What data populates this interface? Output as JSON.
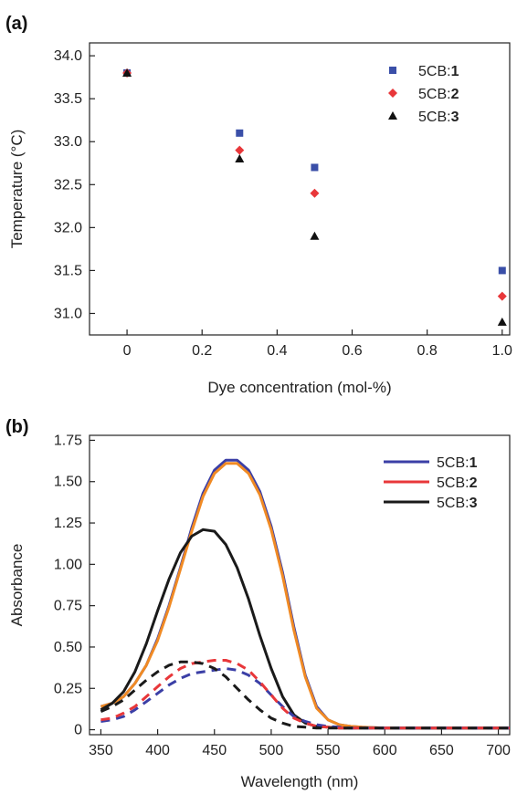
{
  "chart_data": [
    {
      "panel_label": "(a)",
      "type": "scatter",
      "xlabel": "Dye concentration (mol-%)",
      "ylabel": "Temperature (°C)",
      "xlim": [
        -0.1,
        1.02
      ],
      "ylim": [
        30.75,
        34.15
      ],
      "xticks": [
        "0",
        "0.2",
        "0.4",
        "0.6",
        "0.8",
        "1.0"
      ],
      "xtick_values": [
        0,
        0.2,
        0.4,
        0.6,
        0.8,
        1.0
      ],
      "yticks": [
        "31.0",
        "31.5",
        "32.0",
        "32.5",
        "33.0",
        "33.5",
        "34.0"
      ],
      "ytick_values": [
        31.0,
        31.5,
        32.0,
        32.5,
        33.0,
        33.5,
        34.0
      ],
      "grid": false,
      "legend_position": "top-right",
      "x": [
        0,
        0.3,
        0.5,
        1.0
      ],
      "series": [
        {
          "name_prefix": "5CB:",
          "name_bold": "1",
          "marker": "square",
          "color": "#3a4fa8",
          "values": [
            33.8,
            33.1,
            32.7,
            31.5
          ]
        },
        {
          "name_prefix": "5CB:",
          "name_bold": "2",
          "marker": "diamond",
          "color": "#e8373a",
          "values": [
            33.8,
            32.9,
            32.4,
            31.2
          ]
        },
        {
          "name_prefix": "5CB:",
          "name_bold": "3",
          "marker": "triangle",
          "color": "#111111",
          "values": [
            33.8,
            32.8,
            31.9,
            30.9
          ]
        }
      ]
    },
    {
      "panel_label": "(b)",
      "type": "line",
      "xlabel": "Wavelength (nm)",
      "ylabel": "Absorbance",
      "xlim": [
        340,
        710
      ],
      "ylim": [
        -0.03,
        1.78
      ],
      "xticks": [
        "350",
        "400",
        "450",
        "500",
        "550",
        "600",
        "650",
        "700"
      ],
      "xtick_values": [
        350,
        400,
        450,
        500,
        550,
        600,
        650,
        700
      ],
      "yticks": [
        "0",
        "0.25",
        "0.50",
        "0.75",
        "1.00",
        "1.25",
        "1.50",
        "1.75"
      ],
      "ytick_values": [
        0,
        0.25,
        0.5,
        0.75,
        1.0,
        1.25,
        1.5,
        1.75
      ],
      "grid": false,
      "legend_position": "top-right",
      "x": [
        350,
        360,
        370,
        380,
        390,
        400,
        410,
        420,
        430,
        440,
        450,
        460,
        470,
        480,
        490,
        500,
        510,
        520,
        530,
        540,
        550,
        560,
        570,
        580,
        600,
        650,
        700,
        710
      ],
      "series": [
        {
          "name_prefix": "5CB:",
          "name_bold": "1",
          "color": "#3b3fa6",
          "dash": "solid",
          "values": [
            0.14,
            0.16,
            0.2,
            0.28,
            0.39,
            0.55,
            0.75,
            0.98,
            1.22,
            1.43,
            1.57,
            1.63,
            1.63,
            1.57,
            1.44,
            1.23,
            0.95,
            0.62,
            0.33,
            0.14,
            0.06,
            0.03,
            0.02,
            0.015,
            0.01,
            0.01,
            0.01,
            0.01
          ]
        },
        {
          "name": "",
          "color": "#f08a24",
          "dash": "solid",
          "values": [
            0.14,
            0.16,
            0.2,
            0.28,
            0.39,
            0.54,
            0.74,
            0.97,
            1.2,
            1.41,
            1.55,
            1.61,
            1.61,
            1.55,
            1.42,
            1.21,
            0.93,
            0.6,
            0.32,
            0.13,
            0.06,
            0.03,
            0.02,
            0.015,
            0.01,
            0.01,
            0.01,
            0.01
          ]
        },
        {
          "name_prefix": "5CB:",
          "name_bold": "3",
          "color": "#1a1a1a",
          "dash": "solid",
          "values": [
            0.12,
            0.16,
            0.23,
            0.35,
            0.52,
            0.72,
            0.91,
            1.07,
            1.17,
            1.21,
            1.2,
            1.12,
            0.98,
            0.79,
            0.57,
            0.37,
            0.2,
            0.09,
            0.04,
            0.02,
            0.015,
            0.01,
            0.01,
            0.01,
            0.01,
            0.01,
            0.01,
            0.01
          ]
        },
        {
          "name": "",
          "color": "#3b3fa6",
          "dash": "dashed",
          "values": [
            0.05,
            0.06,
            0.08,
            0.12,
            0.17,
            0.22,
            0.27,
            0.31,
            0.34,
            0.35,
            0.36,
            0.37,
            0.36,
            0.33,
            0.28,
            0.21,
            0.14,
            0.08,
            0.05,
            0.03,
            0.02,
            0.015,
            0.01,
            0.01,
            0.01,
            0.01,
            0.01,
            0.01
          ]
        },
        {
          "name": "",
          "color": "#e8373a",
          "dash": "dashed",
          "values": [
            0.06,
            0.07,
            0.1,
            0.14,
            0.2,
            0.26,
            0.32,
            0.37,
            0.4,
            0.41,
            0.42,
            0.42,
            0.4,
            0.36,
            0.29,
            0.21,
            0.13,
            0.07,
            0.04,
            0.02,
            0.015,
            0.01,
            0.01,
            0.01,
            0.01,
            0.01,
            0.01,
            0.01
          ]
        },
        {
          "name": "",
          "color": "#1a1a1a",
          "dash": "dashed",
          "values": [
            0.11,
            0.14,
            0.18,
            0.24,
            0.3,
            0.35,
            0.39,
            0.41,
            0.41,
            0.4,
            0.37,
            0.32,
            0.25,
            0.18,
            0.12,
            0.07,
            0.04,
            0.02,
            0.015,
            0.01,
            0.01,
            0.01,
            0.01,
            0.01,
            0.01,
            0.01,
            0.01,
            0.01
          ]
        }
      ],
      "legend": [
        {
          "name_prefix": "5CB:",
          "name_bold": "1",
          "color": "#3b3fa6"
        },
        {
          "name_prefix": "5CB:",
          "name_bold": "2",
          "color": "#e8373a"
        },
        {
          "name_prefix": "5CB:",
          "name_bold": "3",
          "color": "#1a1a1a"
        }
      ]
    }
  ]
}
